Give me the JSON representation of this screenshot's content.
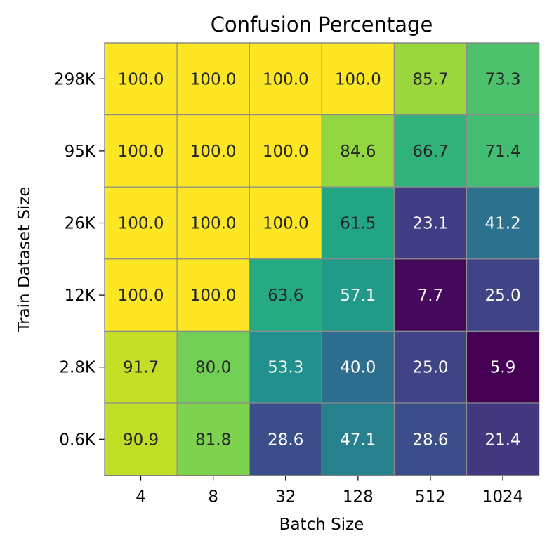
{
  "chart_data": {
    "type": "heatmap",
    "title": "Confusion Percentage",
    "xlabel": "Batch Size",
    "ylabel": "Train Dataset Size",
    "x_categories": [
      "4",
      "8",
      "32",
      "128",
      "512",
      "1024"
    ],
    "y_categories": [
      "298K",
      "95K",
      "26K",
      "12K",
      "2.8K",
      "0.6K"
    ],
    "values": [
      [
        100.0,
        100.0,
        100.0,
        100.0,
        85.7,
        73.3
      ],
      [
        100.0,
        100.0,
        100.0,
        84.6,
        66.7,
        71.4
      ],
      [
        100.0,
        100.0,
        100.0,
        61.5,
        23.1,
        41.2
      ],
      [
        100.0,
        100.0,
        63.6,
        57.1,
        7.7,
        25.0
      ],
      [
        91.7,
        80.0,
        53.3,
        40.0,
        25.0,
        5.9
      ],
      [
        90.9,
        81.8,
        28.6,
        47.1,
        28.6,
        21.4
      ]
    ],
    "value_range": [
      5.9,
      100.0
    ],
    "colormap": "viridis",
    "grid": true,
    "legend": "none"
  }
}
